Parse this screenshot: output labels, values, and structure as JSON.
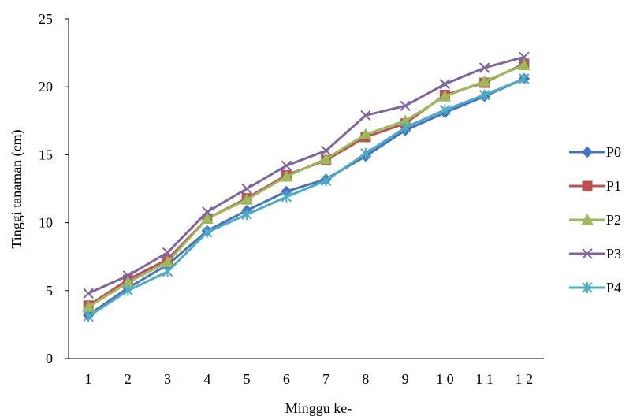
{
  "chart_data": {
    "type": "line",
    "xlabel": "Minggu ke-",
    "ylabel": "Tinggi tanaman (cm)",
    "ylim": [
      0,
      25
    ],
    "yticks": [
      0,
      5,
      10,
      15,
      20,
      25
    ],
    "categories": [
      "1",
      "2",
      "3",
      "4",
      "5",
      "6",
      "7",
      "8",
      "9",
      "1 0",
      "1 1",
      "1 2"
    ],
    "grid": false,
    "legend_position": "right",
    "series": [
      {
        "name": "P0",
        "color": "#4472C4",
        "marker": "diamond",
        "values": [
          3.2,
          5.2,
          6.9,
          9.4,
          10.9,
          12.3,
          13.2,
          14.9,
          16.8,
          18.1,
          19.3,
          20.6
        ]
      },
      {
        "name": "P1",
        "color": "#C0504D",
        "marker": "square",
        "values": [
          3.9,
          5.8,
          7.3,
          10.3,
          11.8,
          13.5,
          14.6,
          16.3,
          17.3,
          19.4,
          20.3,
          21.7
        ]
      },
      {
        "name": "P2",
        "color": "#9BBB59",
        "marker": "triangle",
        "values": [
          3.8,
          5.6,
          7.1,
          10.3,
          11.7,
          13.4,
          14.7,
          16.5,
          17.5,
          19.3,
          20.4,
          21.6
        ]
      },
      {
        "name": "P3",
        "color": "#8064A2",
        "marker": "x",
        "values": [
          4.8,
          6.1,
          7.8,
          10.8,
          12.5,
          14.2,
          15.3,
          17.9,
          18.6,
          20.2,
          21.4,
          22.2
        ]
      },
      {
        "name": "P4",
        "color": "#4BACC6",
        "marker": "star",
        "values": [
          3.1,
          5.0,
          6.4,
          9.3,
          10.6,
          11.9,
          13.1,
          15.1,
          17.0,
          18.3,
          19.4,
          20.6
        ]
      }
    ]
  }
}
